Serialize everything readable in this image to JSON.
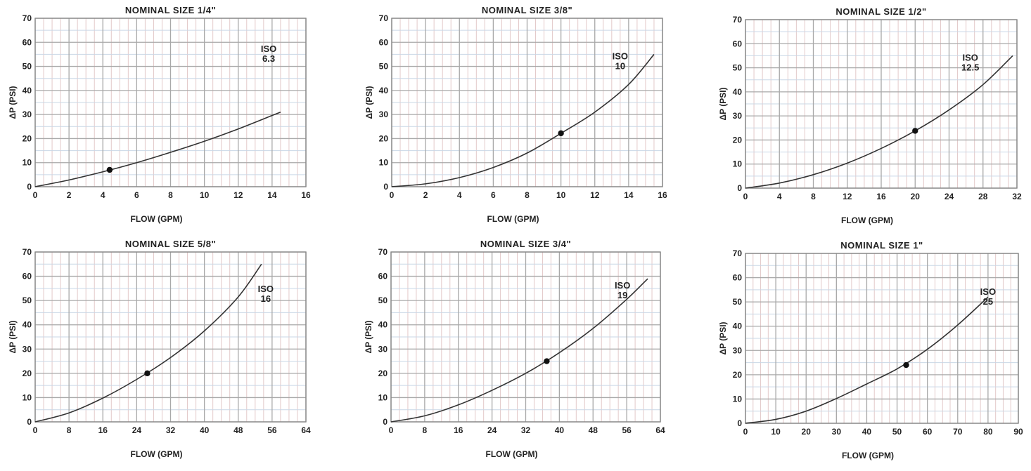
{
  "colors": {
    "grid_major": "#a8a8a8",
    "grid_minor_v": "#e3c9c9",
    "grid_minor_h": "#c9d7e6",
    "curve": "#333333",
    "point": "#111111"
  },
  "chart_data": [
    {
      "type": "line",
      "title": "NOMINAL SIZE 1/4\"",
      "xlabel": "FLOW (GPM)",
      "ylabel": "ΔP (PSI)",
      "xlim": [
        0,
        16
      ],
      "ylim": [
        0,
        70
      ],
      "xticks": [
        0,
        2,
        4,
        6,
        8,
        10,
        12,
        14,
        16
      ],
      "yticks": [
        0,
        10,
        20,
        30,
        40,
        50,
        60,
        70
      ],
      "grid": true,
      "series": [
        {
          "name": "ISO 6.3",
          "x": [
            0,
            2,
            4,
            6,
            8,
            10,
            12,
            14,
            14.5
          ],
          "y": [
            0,
            2.8,
            6.2,
            10,
            14.3,
            18.9,
            24,
            29.6,
            31
          ]
        }
      ],
      "annotations": [
        {
          "line1": "ISO",
          "line2": "6.3",
          "x": 13.8,
          "y": 56
        }
      ],
      "marker": {
        "x": 4.4,
        "y": 7
      }
    },
    {
      "type": "line",
      "title": "NOMINAL SIZE 3/8\"",
      "xlabel": "FLOW (GPM)",
      "ylabel": "ΔP (PSI)",
      "xlim": [
        0,
        16
      ],
      "ylim": [
        0,
        70
      ],
      "xticks": [
        0,
        2,
        4,
        6,
        8,
        10,
        12,
        14,
        16
      ],
      "yticks": [
        0,
        10,
        20,
        30,
        40,
        50,
        60,
        70
      ],
      "grid": true,
      "series": [
        {
          "name": "ISO 10",
          "x": [
            0,
            2,
            4,
            6,
            8,
            10,
            12,
            14,
            15.5
          ],
          "y": [
            0,
            1.2,
            3.8,
            8,
            14,
            22.2,
            31,
            42.5,
            55
          ]
        }
      ],
      "annotations": [
        {
          "line1": "ISO",
          "line2": "10",
          "x": 13.5,
          "y": 53
        }
      ],
      "marker": {
        "x": 10,
        "y": 22.2
      }
    },
    {
      "type": "line",
      "title": "NOMINAL SIZE 1/2\"",
      "xlabel": "FLOW (GPM)",
      "ylabel": "ΔP (PSI)",
      "xlim": [
        0,
        32
      ],
      "ylim": [
        0,
        70
      ],
      "xticks": [
        0,
        4,
        8,
        12,
        16,
        20,
        24,
        28,
        32
      ],
      "yticks": [
        0,
        10,
        20,
        30,
        40,
        50,
        60,
        70
      ],
      "grid": true,
      "series": [
        {
          "name": "ISO 12.5",
          "x": [
            0,
            4,
            8,
            12,
            16,
            20,
            24,
            28,
            31.5
          ],
          "y": [
            0,
            2.1,
            5.6,
            10.4,
            16.5,
            23.8,
            32.5,
            43,
            55
          ]
        }
      ],
      "annotations": [
        {
          "line1": "ISO",
          "line2": "12.5",
          "x": 26.5,
          "y": 53
        }
      ],
      "marker": {
        "x": 20,
        "y": 23.8
      }
    },
    {
      "type": "line",
      "title": "NOMINAL SIZE 5/8\"",
      "xlabel": "FLOW (GPM)",
      "ylabel": "ΔP (PSI)",
      "xlim": [
        0,
        64
      ],
      "ylim": [
        0,
        70
      ],
      "xticks": [
        0,
        8,
        16,
        24,
        32,
        40,
        48,
        56,
        64
      ],
      "yticks": [
        0,
        10,
        20,
        30,
        40,
        50,
        60,
        70
      ],
      "grid": true,
      "series": [
        {
          "name": "ISO 16",
          "x": [
            0,
            8,
            16,
            24,
            32,
            40,
            48,
            53.5
          ],
          "y": [
            0,
            3.7,
            9.8,
            17.5,
            26.5,
            37.5,
            51.5,
            65
          ]
        }
      ],
      "annotations": [
        {
          "line1": "ISO",
          "line2": "16",
          "x": 54.5,
          "y": 53.5
        }
      ],
      "marker": {
        "x": 26.5,
        "y": 20
      }
    },
    {
      "type": "line",
      "title": "NOMINAL SIZE 3/4\"",
      "xlabel": "FLOW (GPM)",
      "ylabel": "ΔP (PSI)",
      "xlim": [
        0,
        64
      ],
      "ylim": [
        0,
        70
      ],
      "xticks": [
        0,
        8,
        16,
        24,
        32,
        40,
        48,
        56,
        64
      ],
      "yticks": [
        0,
        10,
        20,
        30,
        40,
        50,
        60,
        70
      ],
      "grid": true,
      "series": [
        {
          "name": "ISO 19",
          "x": [
            0,
            8,
            16,
            24,
            32,
            40,
            48,
            56,
            61
          ],
          "y": [
            0,
            2.5,
            7,
            13,
            20,
            28.5,
            38.5,
            50.5,
            59
          ]
        }
      ],
      "annotations": [
        {
          "line1": "ISO",
          "line2": "19",
          "x": 55,
          "y": 55
        }
      ],
      "marker": {
        "x": 37,
        "y": 25
      }
    },
    {
      "type": "line",
      "title": "NOMINAL SIZE 1\"",
      "xlabel": "FLOW (GPM)",
      "ylabel": "ΔP (PSI)",
      "xlim": [
        0,
        90
      ],
      "ylim": [
        0,
        70
      ],
      "xticks": [
        0,
        10,
        20,
        30,
        40,
        50,
        60,
        70,
        80,
        90
      ],
      "yticks": [
        0,
        10,
        20,
        30,
        40,
        50,
        60,
        70
      ],
      "grid": true,
      "series": [
        {
          "name": "ISO 25",
          "x": [
            0,
            10,
            20,
            30,
            40,
            50,
            60,
            70,
            80
          ],
          "y": [
            0,
            1.6,
            5,
            10.2,
            16.2,
            22.4,
            30.5,
            40.5,
            52
          ]
        }
      ],
      "annotations": [
        {
          "line1": "ISO",
          "line2": "25",
          "x": 80,
          "y": 53
        }
      ],
      "marker": {
        "x": 53,
        "y": 24
      }
    }
  ]
}
